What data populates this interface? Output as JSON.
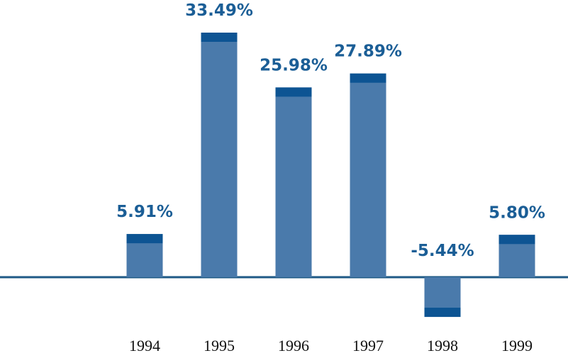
{
  "chart_data": {
    "type": "bar",
    "categories": [
      "1994",
      "1995",
      "1996",
      "1997",
      "1998",
      "1999"
    ],
    "values": [
      5.91,
      33.49,
      25.98,
      27.89,
      -5.44,
      5.8
    ],
    "value_labels": [
      "5.91%",
      "33.49%",
      "25.98%",
      "27.89%",
      "-5.44%",
      "5.80%"
    ],
    "color": "#4a7aab",
    "cap_color": "#0d5493"
  }
}
